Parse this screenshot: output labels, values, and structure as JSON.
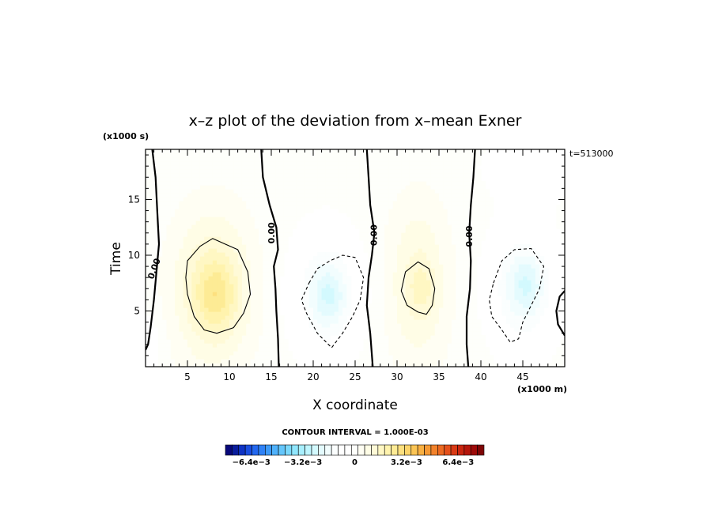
{
  "chart_data": {
    "type": "heatmap",
    "title": "x–z plot of the deviation from x–mean Exner",
    "xlabel": "X coordinate",
    "ylabel": "Time",
    "x_unit": "(x1000 m)",
    "y_unit": "(x1000 s)",
    "time_stamp": "t=513000",
    "xlim": [
      0,
      50
    ],
    "ylim": [
      0,
      19.5
    ],
    "x_ticks": [
      5,
      10,
      15,
      20,
      25,
      30,
      35,
      40,
      45
    ],
    "y_ticks": [
      5,
      10,
      15
    ],
    "x_minor_step": 1,
    "y_minor_step": 1,
    "contour_interval_text": "CONTOUR INTERVAL = 1.000E-03",
    "contour_label": "0.00",
    "anomalies": [
      {
        "x": 8.0,
        "y": 7.0,
        "sx": 4.5,
        "sy": 6.5,
        "amp": 0.0017
      },
      {
        "x": 8.5,
        "y": 6.5,
        "sx": 2.5,
        "sy": 3.0,
        "amp": 0.001
      },
      {
        "x": 21.5,
        "y": 6.5,
        "sx": 4.0,
        "sy": 5.5,
        "amp": -0.0016
      },
      {
        "x": 22.0,
        "y": 6.5,
        "sx": 2.0,
        "sy": 2.5,
        "amp": -0.0008
      },
      {
        "x": 32.5,
        "y": 7.5,
        "sx": 3.5,
        "sy": 7.0,
        "amp": 0.0012
      },
      {
        "x": 33.0,
        "y": 7.0,
        "sx": 1.5,
        "sy": 2.0,
        "amp": 0.0006
      },
      {
        "x": 45.0,
        "y": 7.0,
        "sx": 4.0,
        "sy": 5.5,
        "amp": -0.0016
      },
      {
        "x": 45.5,
        "y": 7.5,
        "sx": 2.0,
        "sy": 2.5,
        "amp": -0.0008
      },
      {
        "x": 46.0,
        "y": 18.0,
        "sx": 6.0,
        "sy": 3.0,
        "amp": -0.0006
      },
      {
        "x": 0.5,
        "y": 2.0,
        "sx": 1.5,
        "sy": 3.0,
        "amp": -0.0006
      }
    ],
    "zero_contours": [
      [
        [
          0.8,
          19.5
        ],
        [
          1.2,
          17.0
        ],
        [
          1.4,
          14.0
        ],
        [
          1.6,
          11.0
        ],
        [
          1.3,
          8.5
        ],
        [
          1.0,
          6.0
        ],
        [
          0.6,
          3.5
        ],
        [
          0.3,
          2.0
        ],
        [
          0,
          1.5
        ]
      ],
      [
        [
          13.8,
          19.5
        ],
        [
          14.0,
          17.0
        ],
        [
          14.8,
          14.5
        ],
        [
          15.6,
          12.5
        ],
        [
          15.8,
          10.5
        ],
        [
          15.3,
          9.0
        ],
        [
          15.5,
          7.0
        ],
        [
          15.6,
          5.0
        ],
        [
          15.8,
          2.5
        ],
        [
          15.9,
          0
        ]
      ],
      [
        [
          26.4,
          19.5
        ],
        [
          26.6,
          17.0
        ],
        [
          26.8,
          14.5
        ],
        [
          27.3,
          12.0
        ],
        [
          27.0,
          10.0
        ],
        [
          26.6,
          8.0
        ],
        [
          26.4,
          5.5
        ],
        [
          26.8,
          3.0
        ],
        [
          27.1,
          0
        ]
      ],
      [
        [
          39.3,
          19.5
        ],
        [
          39.1,
          17.0
        ],
        [
          38.8,
          14.5
        ],
        [
          38.6,
          12.0
        ],
        [
          38.8,
          9.5
        ],
        [
          38.7,
          7.0
        ],
        [
          38.3,
          4.5
        ],
        [
          38.3,
          2.0
        ],
        [
          38.5,
          0
        ]
      ],
      [
        [
          50,
          6.8
        ],
        [
          49.4,
          6.3
        ],
        [
          49.0,
          5.0
        ],
        [
          49.2,
          3.8
        ],
        [
          50,
          2.8
        ]
      ]
    ],
    "positive_contours": [
      [
        [
          5.0,
          9.5
        ],
        [
          6.5,
          10.8
        ],
        [
          8.0,
          11.5
        ],
        [
          9.5,
          11.0
        ],
        [
          11.0,
          10.5
        ],
        [
          12.2,
          8.5
        ],
        [
          12.5,
          6.5
        ],
        [
          11.7,
          4.8
        ],
        [
          10.5,
          3.5
        ],
        [
          8.5,
          3.0
        ],
        [
          7.0,
          3.3
        ],
        [
          5.8,
          4.5
        ],
        [
          5.0,
          6.5
        ],
        [
          4.8,
          8.0
        ]
      ],
      [
        [
          31.0,
          8.5
        ],
        [
          32.5,
          9.4
        ],
        [
          33.8,
          8.8
        ],
        [
          34.5,
          7.0
        ],
        [
          34.2,
          5.5
        ],
        [
          33.5,
          4.7
        ],
        [
          32.5,
          4.9
        ],
        [
          31.2,
          5.5
        ],
        [
          30.5,
          6.8
        ]
      ]
    ],
    "negative_contours": [
      [
        [
          19.5,
          7.5
        ],
        [
          20.5,
          8.8
        ],
        [
          22.0,
          9.5
        ],
        [
          23.5,
          10.0
        ],
        [
          25.0,
          9.8
        ],
        [
          26.0,
          8.0
        ],
        [
          25.6,
          6.0
        ],
        [
          24.7,
          4.5
        ],
        [
          23.5,
          3.0
        ],
        [
          22.2,
          1.7
        ],
        [
          20.5,
          3.0
        ],
        [
          19.2,
          4.8
        ],
        [
          18.6,
          6.0
        ]
      ],
      [
        [
          41.5,
          7.5
        ],
        [
          42.5,
          9.5
        ],
        [
          44.0,
          10.5
        ],
        [
          46.0,
          10.6
        ],
        [
          47.5,
          9.0
        ],
        [
          47.0,
          7.0
        ],
        [
          46.0,
          5.5
        ],
        [
          45.0,
          4.0
        ],
        [
          44.5,
          2.5
        ],
        [
          43.5,
          2.2
        ],
        [
          42.5,
          3.3
        ],
        [
          41.3,
          4.5
        ],
        [
          41.0,
          6.0
        ]
      ]
    ],
    "contour_label_positions": [
      {
        "x": 1.0,
        "y": 8.8,
        "angle": -70
      },
      {
        "x": 15.0,
        "y": 12.0,
        "angle": -90
      },
      {
        "x": 27.2,
        "y": 11.8,
        "angle": -90
      },
      {
        "x": 38.6,
        "y": 11.7,
        "angle": -90
      }
    ],
    "colorbar": {
      "min": -0.008,
      "max": 0.008,
      "step": 0.0004,
      "tick_labels": [
        "−6.4e−3",
        "−3.2e−3",
        "0",
        "3.2e−3",
        "6.4e−3"
      ],
      "tick_values": [
        -0.0064,
        -0.0032,
        0,
        0.0032,
        0.0064
      ],
      "colors": [
        "#08087a",
        "#0a1d9c",
        "#0f33c4",
        "#1a4ee0",
        "#2468ef",
        "#2f82f6",
        "#3d9af8",
        "#4fb1fa",
        "#64c6fb",
        "#7ad8fc",
        "#90e6fd",
        "#a8effd",
        "#bff5fe",
        "#d3f9fe",
        "#e4fbfe",
        "#f2fdfe",
        "#fbfefe",
        "#ffffff",
        "#ffffff",
        "#fefffb",
        "#fffef3",
        "#fffde6",
        "#fffad7",
        "#fff7c3",
        "#fff3ad",
        "#fdeb95",
        "#fde07f",
        "#fcd46a",
        "#fbc555",
        "#f9b143",
        "#f69a35",
        "#f2822b",
        "#ec6a22",
        "#e4501b",
        "#d93a15",
        "#c92610",
        "#b5170c",
        "#9e0b09",
        "#7e0606"
      ]
    }
  }
}
